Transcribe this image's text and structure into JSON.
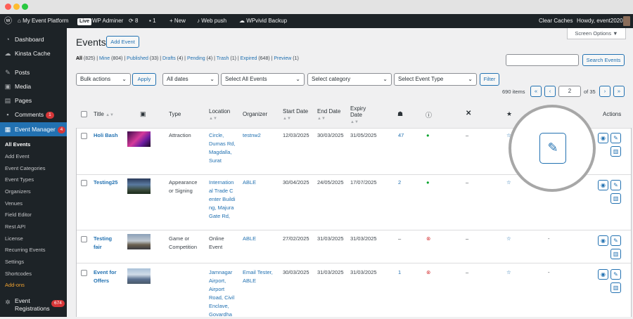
{
  "admin_bar": {
    "site_name": "My Event Platform",
    "live_label": "Live",
    "wp_adminer": "WP Adminer",
    "updates_count": "8",
    "comments_count": "1",
    "new_label": "New",
    "web_push": "Web push",
    "wpvivid": "WPvivid Backup",
    "clear_caches": "Clear Caches",
    "howdy": "Howdy, event2020"
  },
  "sidebar": {
    "dashboard": "Dashboard",
    "kinsta": "Kinsta Cache",
    "posts": "Posts",
    "media": "Media",
    "pages": "Pages",
    "comments": "Comments",
    "comments_badge": "1",
    "event_manager": "Event Manager",
    "event_manager_badge": "4",
    "submenu": [
      "All Events",
      "Add Event",
      "Event Categories",
      "Event Types",
      "Organizers",
      "Venues",
      "Field Editor",
      "Rest API",
      "License",
      "Recurring Events",
      "Settings",
      "Shortcodes",
      "Add-ons"
    ],
    "event_registrations": "Event Registrations",
    "event_registrations_badge": "674"
  },
  "header": {
    "title": "Events",
    "add_event": "Add Event",
    "screen_options": "Screen Options ▼"
  },
  "filters": {
    "all": "All",
    "all_count": "(825)",
    "mine": "Mine",
    "mine_count": "(804)",
    "published": "Published",
    "published_count": "(33)",
    "drafts": "Drafts",
    "drafts_count": "(4)",
    "pending": "Pending",
    "pending_count": "(4)",
    "trash": "Trash",
    "trash_count": "(1)",
    "expired": "Expired",
    "expired_count": "(648)",
    "preview": "Preview",
    "preview_count": "(1)"
  },
  "search": {
    "button": "Search Events",
    "value": ""
  },
  "toolbar": {
    "bulk_actions": "Bulk actions",
    "apply": "Apply",
    "all_dates": "All dates",
    "all_events": "Select All Events",
    "category": "Select category",
    "event_type": "Select Event Type",
    "filter": "Filter"
  },
  "pagination": {
    "items": "690 items",
    "first": "«",
    "prev": "‹",
    "current_page": "2",
    "of_pages": "of 35",
    "next": "›",
    "last": "»"
  },
  "columns": {
    "title": "Title",
    "type": "Type",
    "location": "Location",
    "organizer": "Organizer",
    "start_date": "Start Date",
    "end_date": "End Date",
    "expiry_date": "Expiry Date",
    "actions": "Actions"
  },
  "rows": [
    {
      "title": "Holi Bash",
      "type": "Attraction",
      "location": "Circle, Dumas Rd, Magdalla, Surat",
      "organizer": "testnw2",
      "start": "12/03/2025",
      "end": "30/03/2025",
      "expiry": "31/05/2025",
      "attendees": "47",
      "status": "ok",
      "cancelled": "–",
      "featured": "☆"
    },
    {
      "title": "Testing25",
      "type": "Appearance or Signing",
      "location": "International Trade Center Building, Majura Gate Rd,",
      "organizer": "ABLE",
      "start": "30/04/2025",
      "end": "24/05/2025",
      "expiry": "17/07/2025",
      "attendees": "2",
      "status": "ok",
      "cancelled": "–",
      "featured": "☆"
    },
    {
      "title": "Testing fair",
      "type": "Game or Competition",
      "location": "Online Event",
      "organizer": "ABLE",
      "start": "27/02/2025",
      "end": "31/03/2025",
      "expiry": "31/03/2025",
      "attendees": "–",
      "status": "no",
      "cancelled": "–",
      "featured": "☆",
      "extra": "-"
    },
    {
      "title": "Event for Offers",
      "type": "",
      "location": "Jamnagar Airport, Airport Road, Civil Enclave, Govardha",
      "organizer": "Email Tester, ABLE",
      "start": "30/03/2025",
      "end": "31/03/2025",
      "expiry": "31/03/2025",
      "attendees": "1",
      "status": "no",
      "cancelled": "–",
      "featured": "☆",
      "extra": "-"
    }
  ]
}
